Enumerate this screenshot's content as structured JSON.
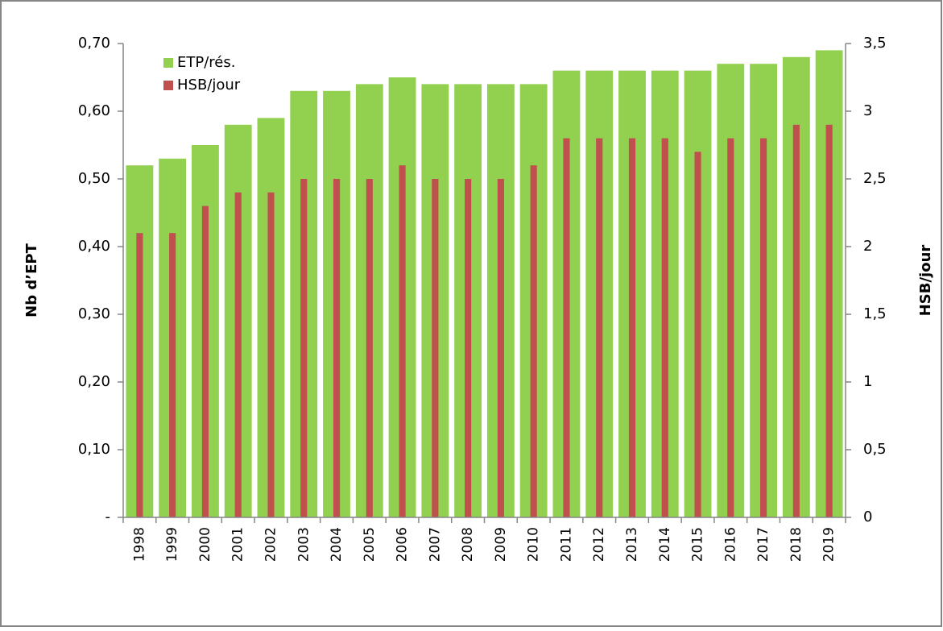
{
  "chart_data": {
    "type": "bar",
    "categories": [
      "1998",
      "1999",
      "2000",
      "2001",
      "2002",
      "2003",
      "2004",
      "2005",
      "2006",
      "2007",
      "2008",
      "2009",
      "2010",
      "2011",
      "2012",
      "2013",
      "2014",
      "2015",
      "2016",
      "2017",
      "2018",
      "2019"
    ],
    "series": [
      {
        "name": "ETP/rés.",
        "color": "#92d050",
        "values": [
          0.52,
          0.53,
          0.55,
          0.58,
          0.59,
          0.63,
          0.63,
          0.64,
          0.65,
          0.64,
          0.64,
          0.64,
          0.64,
          0.66,
          0.66,
          0.66,
          0.66,
          0.66,
          0.67,
          0.67,
          0.68,
          0.69
        ]
      },
      {
        "name": "HSB/jour",
        "color": "#c0504d",
        "axis": "y2",
        "values": [
          2.1,
          2.1,
          2.3,
          2.4,
          2.4,
          2.5,
          2.5,
          2.5,
          2.6,
          2.5,
          2.5,
          2.5,
          2.6,
          2.8,
          2.8,
          2.8,
          2.8,
          2.7,
          2.8,
          2.8,
          2.9,
          2.9
        ]
      }
    ],
    "y_label": "Nb d’EPT",
    "y2_label": "HSB/jour",
    "ylim": [
      0,
      0.7
    ],
    "yticks": [
      {
        "value": 0,
        "label": "-"
      },
      {
        "value": 0.1,
        "label": "0,10"
      },
      {
        "value": 0.2,
        "label": "0,20"
      },
      {
        "value": 0.3,
        "label": "0,30"
      },
      {
        "value": 0.4,
        "label": "0,40"
      },
      {
        "value": 0.5,
        "label": "0,50"
      },
      {
        "value": 0.6,
        "label": "0,60"
      },
      {
        "value": 0.7,
        "label": "0,70"
      }
    ],
    "y2lim": [
      0,
      3.5
    ],
    "y2ticks": [
      0,
      {
        "value": 0.5,
        "label": "0,5"
      },
      1,
      {
        "value": 1.5,
        "label": "1,5"
      },
      2,
      {
        "value": 2.5,
        "label": "2,5"
      },
      3,
      {
        "value": 3.5,
        "label": "3,5"
      }
    ],
    "grid": false,
    "legend": "top-left"
  }
}
